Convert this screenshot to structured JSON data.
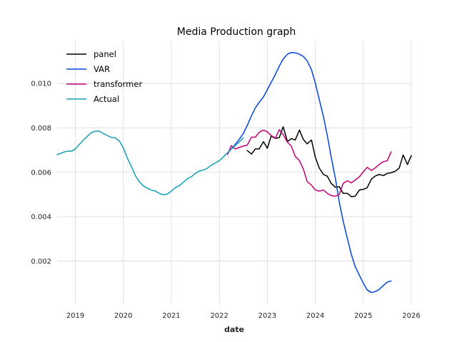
{
  "chart_data": {
    "type": "line",
    "title": "Media Production graph",
    "xlabel": "date",
    "ylabel": "",
    "xlim": [
      2018.62,
      2026.0
    ],
    "ylim": [
      2e-05,
      0.0119
    ],
    "x_ticks": [
      2019,
      2020,
      2021,
      2022,
      2023,
      2024,
      2025,
      2026
    ],
    "x_tick_labels": [
      "2019",
      "2020",
      "2021",
      "2022",
      "2023",
      "2024",
      "2025",
      "2026"
    ],
    "y_ticks": [
      0.002,
      0.004,
      0.006,
      0.008,
      0.01
    ],
    "y_tick_labels": [
      "0.002",
      "0.004",
      "0.006",
      "0.008",
      "0.010"
    ],
    "grid": true,
    "legend_position": "top-left",
    "series": [
      {
        "name": "panel",
        "color": "#000000",
        "x": [
          2022.58,
          2022.67,
          2022.75,
          2022.83,
          2022.92,
          2023.0,
          2023.08,
          2023.17,
          2023.25,
          2023.33,
          2023.42,
          2023.5,
          2023.58,
          2023.67,
          2023.75,
          2023.83,
          2023.92,
          2024.0,
          2024.08,
          2024.17,
          2024.25,
          2024.33,
          2024.42,
          2024.5,
          2024.58,
          2024.67,
          2024.75,
          2024.83,
          2024.92,
          2025.0,
          2025.08,
          2025.17,
          2025.25,
          2025.33,
          2025.42,
          2025.5,
          2025.58,
          2025.67,
          2025.75,
          2025.83,
          2025.92,
          2026.0
        ],
        "y": [
          0.00698,
          0.00682,
          0.00705,
          0.00705,
          0.00738,
          0.00708,
          0.00763,
          0.00753,
          0.00756,
          0.00805,
          0.00738,
          0.00752,
          0.00745,
          0.0079,
          0.00748,
          0.00728,
          0.00745,
          0.00668,
          0.0062,
          0.0059,
          0.00582,
          0.0055,
          0.00532,
          0.00535,
          0.00505,
          0.00505,
          0.0049,
          0.00492,
          0.0052,
          0.00523,
          0.0053,
          0.0057,
          0.00583,
          0.0059,
          0.00585,
          0.00595,
          0.00598,
          0.00605,
          0.0062,
          0.00678,
          0.00635,
          0.00675
        ]
      },
      {
        "name": "VAR",
        "color": "#0343df",
        "x": [
          2022.17,
          2022.25,
          2022.33,
          2022.42,
          2022.5,
          2022.58,
          2022.67,
          2022.75,
          2022.83,
          2022.92,
          2023.0,
          2023.08,
          2023.17,
          2023.25,
          2023.33,
          2023.42,
          2023.5,
          2023.58,
          2023.67,
          2023.75,
          2023.83,
          2023.92,
          2024.0,
          2024.08,
          2024.17,
          2024.25,
          2024.33,
          2024.42,
          2024.5,
          2024.58,
          2024.67,
          2024.75,
          2024.83,
          2024.92,
          2025.0,
          2025.08,
          2025.17,
          2025.25,
          2025.33,
          2025.42,
          2025.5,
          2025.58
        ],
        "y": [
          0.00685,
          0.00705,
          0.00725,
          0.0075,
          0.00775,
          0.0081,
          0.00855,
          0.0089,
          0.00915,
          0.0094,
          0.00972,
          0.01005,
          0.01042,
          0.01078,
          0.0111,
          0.01132,
          0.0114,
          0.01138,
          0.01132,
          0.01122,
          0.01102,
          0.01062,
          0.01002,
          0.0093,
          0.0085,
          0.00765,
          0.0067,
          0.0057,
          0.00465,
          0.0038,
          0.003,
          0.0023,
          0.00175,
          0.00135,
          0.001,
          0.0007,
          0.00058,
          0.00062,
          0.00072,
          0.0009,
          0.00105,
          0.0011
        ]
      },
      {
        "name": "transformer",
        "color": "#c20078",
        "x": [
          2022.17,
          2022.25,
          2022.33,
          2022.42,
          2022.5,
          2022.58,
          2022.67,
          2022.75,
          2022.83,
          2022.92,
          2023.0,
          2023.08,
          2023.17,
          2023.25,
          2023.33,
          2023.42,
          2023.5,
          2023.58,
          2023.67,
          2023.75,
          2023.83,
          2023.92,
          2024.0,
          2024.08,
          2024.17,
          2024.25,
          2024.33,
          2024.42,
          2024.5,
          2024.58,
          2024.67,
          2024.75,
          2024.83,
          2024.92,
          2025.0,
          2025.08,
          2025.17,
          2025.25,
          2025.33,
          2025.42,
          2025.5,
          2025.58
        ],
        "y": [
          0.0068,
          0.0072,
          0.00705,
          0.00712,
          0.00718,
          0.00722,
          0.00758,
          0.00758,
          0.0078,
          0.0079,
          0.00782,
          0.00765,
          0.00755,
          0.00792,
          0.0077,
          0.00735,
          0.00718,
          0.00672,
          0.00652,
          0.00615,
          0.00558,
          0.00542,
          0.0052,
          0.00515,
          0.0052,
          0.00505,
          0.00495,
          0.00492,
          0.005,
          0.0055,
          0.00562,
          0.00552,
          0.00565,
          0.0058,
          0.00602,
          0.00622,
          0.00608,
          0.0062,
          0.00635,
          0.00648,
          0.00652,
          0.00692
        ]
      },
      {
        "name": "Actual",
        "color": "#13a0b4",
        "x": [
          2018.62,
          2018.67,
          2018.75,
          2018.83,
          2018.92,
          2019.0,
          2019.08,
          2019.17,
          2019.25,
          2019.33,
          2019.42,
          2019.5,
          2019.58,
          2019.67,
          2019.75,
          2019.83,
          2019.92,
          2020.0,
          2020.08,
          2020.17,
          2020.25,
          2020.33,
          2020.42,
          2020.5,
          2020.58,
          2020.67,
          2020.75,
          2020.83,
          2020.92,
          2021.0,
          2021.08,
          2021.17,
          2021.25,
          2021.33,
          2021.42,
          2021.5,
          2021.58,
          2021.67,
          2021.75,
          2021.83,
          2021.92,
          2022.0,
          2022.08,
          2022.17,
          2022.25,
          2022.33,
          2022.42,
          2022.5
        ],
        "y": [
          0.0068,
          0.00683,
          0.0069,
          0.00695,
          0.00695,
          0.00705,
          0.00725,
          0.00745,
          0.00762,
          0.00778,
          0.00785,
          0.00785,
          0.00775,
          0.00765,
          0.00757,
          0.00755,
          0.0074,
          0.0071,
          0.00665,
          0.00625,
          0.00585,
          0.00558,
          0.00538,
          0.00528,
          0.0052,
          0.00515,
          0.00505,
          0.00498,
          0.00502,
          0.00515,
          0.0053,
          0.0054,
          0.00555,
          0.0057,
          0.0058,
          0.00595,
          0.00605,
          0.0061,
          0.00618,
          0.00632,
          0.00642,
          0.00652,
          0.00668,
          0.00688,
          0.00705,
          0.0072,
          0.00738,
          0.00755
        ]
      }
    ]
  }
}
